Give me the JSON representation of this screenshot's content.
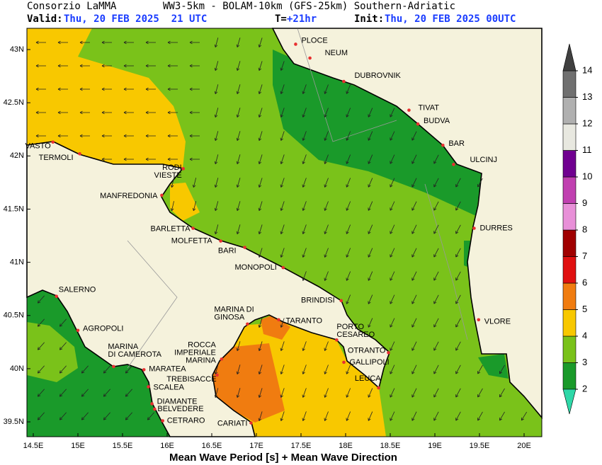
{
  "header": {
    "org": "Consorzio LaMMA",
    "model": "WW3-5km - BOLAM-10km (GFS-25km) Southern-Adriatic",
    "valid_label": "Valid:",
    "valid": "Thu, 20 FEB 2025  21 UTC",
    "step_label": "T=",
    "step": "+21hr",
    "init_label": "Init:",
    "init": "Thu, 20 FEB 2025 00UTC"
  },
  "map": {
    "lon_ticks": [
      {
        "value": 14.5,
        "label": "14.5E"
      },
      {
        "value": 15,
        "label": "15E"
      },
      {
        "value": 15.5,
        "label": "15.5E"
      },
      {
        "value": 16,
        "label": "16E"
      },
      {
        "value": 16.5,
        "label": "16.5E"
      },
      {
        "value": 17,
        "label": "17E"
      },
      {
        "value": 17.5,
        "label": "17.5E"
      },
      {
        "value": 18,
        "label": "18E"
      },
      {
        "value": 18.5,
        "label": "18.5E"
      },
      {
        "value": 19,
        "label": "19E"
      },
      {
        "value": 19.5,
        "label": "19.5E"
      },
      {
        "value": 20,
        "label": "20E"
      }
    ],
    "lat_ticks": [
      {
        "value": 43,
        "label": "43N"
      },
      {
        "value": 42.5,
        "label": "42.5N"
      },
      {
        "value": 42,
        "label": "42N"
      },
      {
        "value": 41.5,
        "label": "41.5N"
      },
      {
        "value": 41,
        "label": "41N"
      },
      {
        "value": 40.5,
        "label": "40.5N"
      },
      {
        "value": 40,
        "label": "40N"
      },
      {
        "value": 39.5,
        "label": "39.5N"
      }
    ],
    "cities": [
      {
        "name": [
          "PLOCE"
        ],
        "lon": 17.44,
        "lat": 43.05
      },
      {
        "name": [
          "NEUM"
        ],
        "lon": 17.6,
        "lat": 42.92
      },
      {
        "name": [
          "DUBROVNIK"
        ],
        "lon": 17.98,
        "lat": 42.7
      },
      {
        "name": [
          "TIVAT"
        ],
        "lon": 18.71,
        "lat": 42.43
      },
      {
        "name": [
          "BUDVA"
        ],
        "lon": 18.81,
        "lat": 42.3
      },
      {
        "name": [
          "BAR"
        ],
        "lon": 19.09,
        "lat": 42.1
      },
      {
        "name": [
          "ULCINJ"
        ],
        "lon": 19.21,
        "lat": 41.92
      },
      {
        "name": [
          "DURRES"
        ],
        "lon": 19.44,
        "lat": 41.32
      },
      {
        "name": [
          "VLORE"
        ],
        "lon": 19.49,
        "lat": 40.46
      },
      {
        "name": [
          "VASTO"
        ],
        "lon": 14.72,
        "lat": 42.13
      },
      {
        "name": [
          "TERMOLI"
        ],
        "lon": 15.02,
        "lat": 42.02
      },
      {
        "name": [
          "RODI",
          "VIESTE"
        ],
        "lon": 16.18,
        "lat": 41.88
      },
      {
        "name": [
          "MANFREDONIA"
        ],
        "lon": 15.94,
        "lat": 41.63
      },
      {
        "name": [
          "BARLETTA"
        ],
        "lon": 16.29,
        "lat": 41.32
      },
      {
        "name": [
          "MOLFETTA"
        ],
        "lon": 16.6,
        "lat": 41.2
      },
      {
        "name": [
          "BARI"
        ],
        "lon": 16.87,
        "lat": 41.14
      },
      {
        "name": [
          "MONOPOLI"
        ],
        "lon": 17.3,
        "lat": 40.95
      },
      {
        "name": [
          "BRINDISI"
        ],
        "lon": 17.95,
        "lat": 40.64
      },
      {
        "name": [
          "MARINA DI",
          "GINOSA"
        ],
        "lon": 16.9,
        "lat": 40.42
      },
      {
        "name": [
          "TARANTO"
        ],
        "lon": 17.25,
        "lat": 40.46
      },
      {
        "name": [
          "PORTO",
          "CESAREO"
        ],
        "lon": 17.9,
        "lat": 40.27
      },
      {
        "name": [
          "OTRANTO"
        ],
        "lon": 18.48,
        "lat": 40.15
      },
      {
        "name": [
          "GALLIPOLI"
        ],
        "lon": 17.98,
        "lat": 40.06
      },
      {
        "name": [
          "LEUCA"
        ],
        "lon": 18.37,
        "lat": 39.82
      },
      {
        "name": [
          "SALERNO"
        ],
        "lon": 14.76,
        "lat": 40.68
      },
      {
        "name": [
          "AGROPOLI"
        ],
        "lon": 15.0,
        "lat": 40.36
      },
      {
        "name": [
          "MARINA",
          "DI CAMEROTA"
        ],
        "lon": 15.4,
        "lat": 40.02
      },
      {
        "name": [
          "ROCCA",
          "IMPERIALE",
          "MARINA"
        ],
        "lon": 16.61,
        "lat": 40.09
      },
      {
        "name": [
          "MARATEA"
        ],
        "lon": 15.74,
        "lat": 39.99
      },
      {
        "name": [
          "TREBISACCE"
        ],
        "lon": 16.56,
        "lat": 39.94
      },
      {
        "name": [
          "SCALEA"
        ],
        "lon": 15.79,
        "lat": 39.83
      },
      {
        "name": [
          "DIAMANTE"
        ],
        "lon": 15.83,
        "lat": 39.67
      },
      {
        "name": [
          "BELVEDERE"
        ],
        "lon": 15.86,
        "lat": 39.62
      },
      {
        "name": [
          "CETRARO"
        ],
        "lon": 15.95,
        "lat": 39.51
      },
      {
        "name": [
          "CARIATI"
        ],
        "lon": 16.94,
        "lat": 39.49
      }
    ]
  },
  "colorbar": {
    "ticks": [
      2,
      3,
      4,
      5,
      6,
      7,
      8,
      9,
      10,
      11,
      12,
      13,
      14
    ],
    "band_colors": [
      "#1a9a2a",
      "#7ac21a",
      "#f8c800",
      "#f07c10",
      "#e01010",
      "#a00000",
      "#e890d8",
      "#c040b0",
      "#700090",
      "#e8e8e0",
      "#b0b0b0",
      "#707070"
    ],
    "below_color": "#2ed8a8",
    "above_color": "#404040"
  },
  "caption": "Mean Wave Period [s] + Mean Wave Direction"
}
